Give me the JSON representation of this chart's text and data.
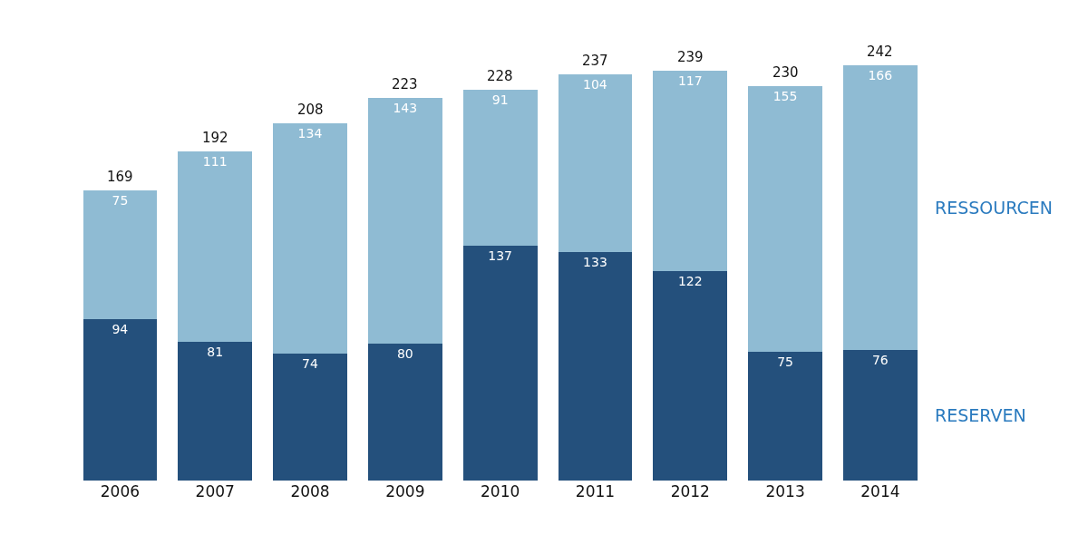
{
  "chart_data": {
    "type": "bar",
    "categories": [
      "2006",
      "2007",
      "2008",
      "2009",
      "2010",
      "2011",
      "2012",
      "2013",
      "2014"
    ],
    "stacked": true,
    "series": [
      {
        "name": "RESERVEN",
        "color": "#24507c",
        "values": [
          94,
          81,
          74,
          80,
          137,
          133,
          122,
          75,
          76
        ]
      },
      {
        "name": "RESSOURCEN",
        "color": "#8fbbd3",
        "values": [
          75,
          111,
          134,
          143,
          91,
          104,
          117,
          155,
          166
        ]
      }
    ],
    "data_labels": true,
    "totals": [
      "169",
      "192",
      "208",
      "223",
      "228",
      "237",
      "239",
      "230",
      "242"
    ],
    "tick_labels": "x"
  }
}
